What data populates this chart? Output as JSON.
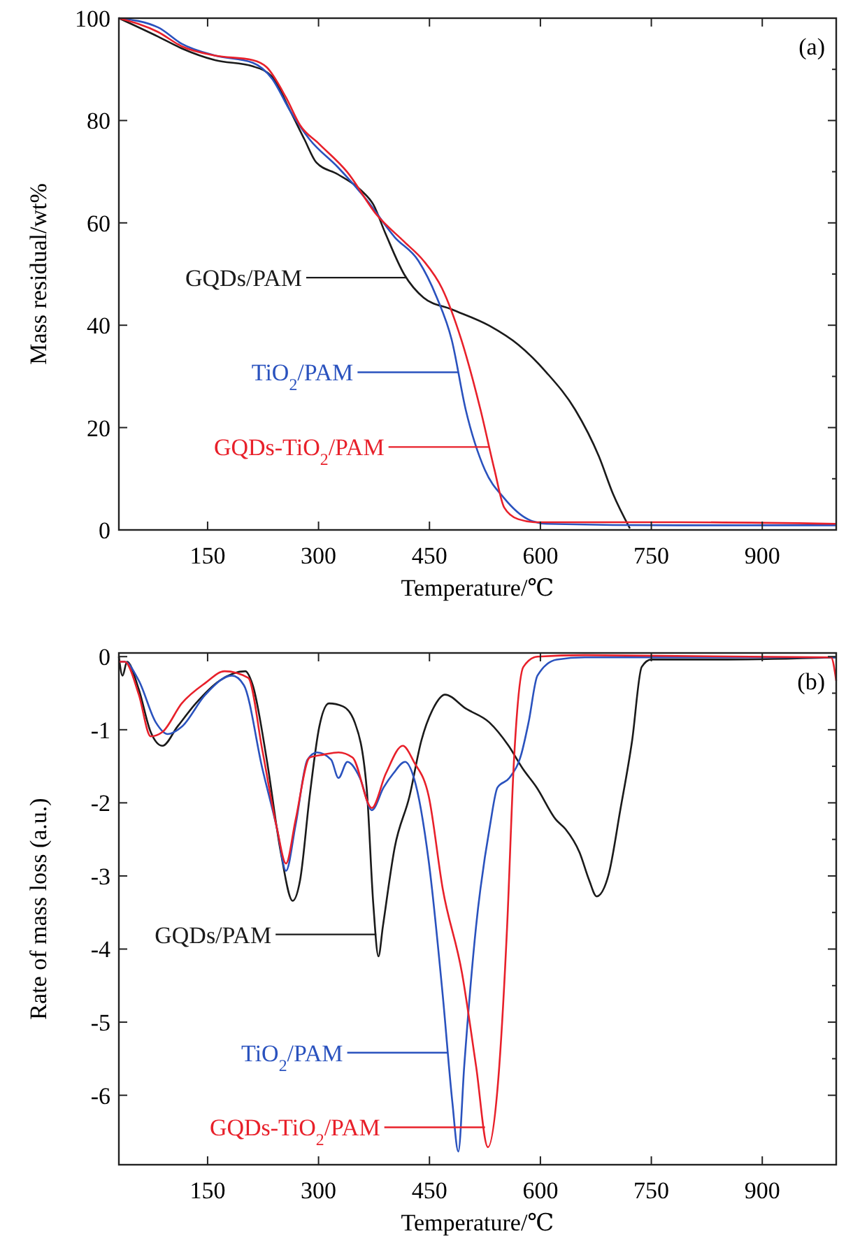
{
  "chart_data": [
    {
      "type": "line",
      "xlabel": "Temperature/℃",
      "ylabel": "Mass residual/wt%",
      "xlim": [
        30,
        1000
      ],
      "xticks": [
        150,
        300,
        450,
        600,
        750,
        900
      ],
      "ylim": [
        0,
        100
      ],
      "yticks": [
        0,
        20,
        40,
        60,
        80,
        100
      ],
      "grid": false,
      "legend": "left",
      "marker": "none",
      "line_style": "solid",
      "series": [
        {
          "name": "GQDs/PAM",
          "color": "#1a1a1a",
          "x": [
            30,
            83,
            115,
            160,
            211,
            237,
            262,
            281,
            297,
            326,
            358,
            374,
            390,
            416,
            442,
            480,
            531,
            570,
            608,
            647,
            679,
            698,
            721
          ],
          "values": [
            100,
            96.4,
            94.1,
            91.8,
            90.6,
            88.6,
            81.8,
            76.3,
            71.8,
            69.5,
            66.3,
            63.6,
            58.1,
            49.9,
            45.4,
            43.1,
            39.9,
            36.2,
            30.8,
            23.5,
            14.4,
            7.1,
            0.3
          ]
        },
        {
          "name": "TiO$_{2}$/PAM",
          "color": "#2a52be",
          "x": [
            30,
            83,
            115,
            160,
            211,
            237,
            262,
            288,
            326,
            365,
            403,
            435,
            460,
            480,
            499,
            525,
            551,
            583,
            608,
            788,
            999
          ],
          "values": [
            100,
            98.2,
            95,
            92.7,
            91.3,
            88.2,
            81.8,
            76.3,
            70.9,
            64.5,
            57.2,
            52.6,
            45.4,
            37.2,
            23.5,
            11.7,
            6.2,
            2.1,
            1.2,
            0.9,
            0.9
          ]
        },
        {
          "name": "GQDs-TiO$_{2}$/PAM",
          "color": "#e8202a",
          "x": [
            30,
            83,
            115,
            160,
            211,
            230,
            256,
            275,
            301,
            339,
            378,
            416,
            442,
            467,
            493,
            519,
            538,
            551,
            570,
            595,
            788,
            999
          ],
          "values": [
            100,
            97.3,
            94.5,
            92.7,
            91.8,
            90.4,
            84.5,
            79.1,
            75.4,
            69.9,
            61.7,
            56.3,
            52.6,
            47.2,
            37.2,
            23.5,
            11.7,
            4.4,
            2.1,
            1.5,
            1.5,
            1.2
          ]
        }
      ],
      "annotations": [
        "(a)"
      ]
    },
    {
      "type": "line",
      "xlabel": "Temperature/℃",
      "ylabel": "Rate of mass loss (a.u.)",
      "xlim": [
        30,
        1000
      ],
      "xticks": [
        150,
        300,
        450,
        600,
        750,
        900
      ],
      "ylim": [
        -6.95,
        0.05
      ],
      "yticks": [
        0,
        -1,
        -2,
        -3,
        -4,
        -5,
        -6
      ],
      "grid": false,
      "legend": "bottom left",
      "marker": "none",
      "line_style": "solid",
      "series": [
        {
          "name": "GQDs/PAM",
          "color": "#1a1a1a",
          "x": [
            30,
            35,
            41,
            57,
            73,
            89,
            109,
            134,
            166,
            201,
            211,
            230,
            249,
            265,
            275,
            288,
            301,
            314,
            333,
            349,
            365,
            374,
            381,
            387,
            403,
            423,
            439,
            455,
            471,
            499,
            531,
            557,
            576,
            595,
            621,
            634,
            653,
            666,
            676,
            692,
            708,
            724,
            737,
            750,
            853,
            1000
          ],
          "values": [
            0,
            -0.26,
            -0.07,
            -0.45,
            -1.03,
            -1.22,
            -0.96,
            -0.64,
            -0.33,
            -0.2,
            -0.39,
            -1.41,
            -2.68,
            -3.34,
            -3.06,
            -1.91,
            -0.96,
            -0.64,
            -0.68,
            -0.9,
            -1.79,
            -3.38,
            -4.1,
            -3.69,
            -2.61,
            -1.91,
            -1.15,
            -0.71,
            -0.52,
            -0.71,
            -0.9,
            -1.22,
            -1.53,
            -1.79,
            -2.23,
            -2.36,
            -2.68,
            -3.06,
            -3.28,
            -2.99,
            -2.1,
            -1.15,
            -0.14,
            -0.04,
            -0.04,
            -0.01
          ]
        },
        {
          "name": "TiO$_{2}$/PAM",
          "color": "#2a52be",
          "x": [
            30,
            38,
            57,
            80,
            96,
            115,
            147,
            183,
            199,
            224,
            244,
            256,
            269,
            285,
            298,
            317,
            327,
            339,
            356,
            372,
            388,
            401,
            417,
            429,
            449,
            468,
            481,
            489,
            497,
            513,
            532,
            542,
            558,
            574,
            584,
            596,
            622,
            660,
            1000
          ],
          "values": [
            -0.07,
            -0.07,
            -0.33,
            -0.9,
            -1.06,
            -0.96,
            -0.52,
            -0.26,
            -0.39,
            -1.53,
            -2.36,
            -2.93,
            -2.3,
            -1.41,
            -1.31,
            -1.41,
            -1.66,
            -1.44,
            -1.66,
            -2.1,
            -1.79,
            -1.6,
            -1.44,
            -1.66,
            -2.8,
            -4.64,
            -6.1,
            -6.77,
            -5.6,
            -3.69,
            -2.3,
            -1.79,
            -1.66,
            -1.34,
            -0.9,
            -0.26,
            -0.04,
            -0.01,
            -0.01
          ]
        },
        {
          "name": "GQDs-TiO$_{2}$/PAM",
          "color": "#e8202a",
          "x": [
            30,
            38,
            57,
            73,
            89,
            115,
            147,
            173,
            205,
            224,
            244,
            256,
            269,
            288,
            307,
            327,
            346,
            372,
            391,
            414,
            429,
            449,
            468,
            494,
            513,
            529,
            542,
            555,
            564,
            577,
            596,
            660,
            993,
            1000
          ],
          "values": [
            -0.07,
            -0.07,
            -0.52,
            -1.09,
            -1.03,
            -0.64,
            -0.36,
            -0.2,
            -0.29,
            -1.28,
            -2.36,
            -2.83,
            -2.23,
            -1.38,
            -1.34,
            -1.31,
            -1.38,
            -2.07,
            -1.6,
            -1.22,
            -1.44,
            -1.91,
            -3.18,
            -4.33,
            -5.6,
            -6.71,
            -5.91,
            -3.69,
            -1.47,
            -0.14,
            0,
            0.02,
            -0.01,
            -0.33
          ]
        }
      ],
      "annotations": [
        "(b)"
      ]
    }
  ]
}
